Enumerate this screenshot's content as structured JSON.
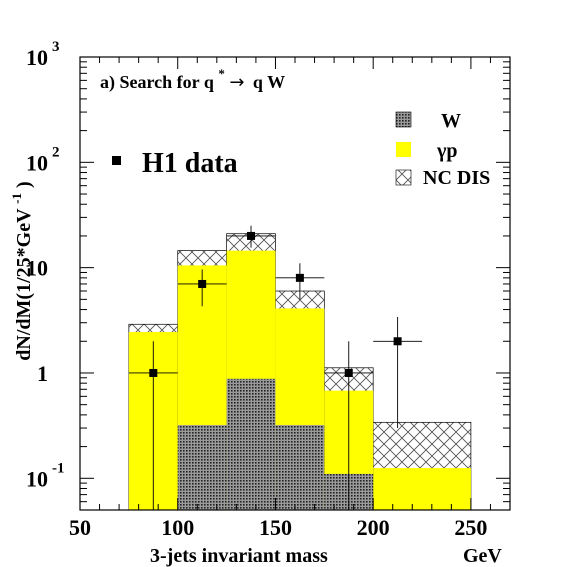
{
  "chart_data": {
    "type": "bar",
    "title": "a)  Search for q* → q W",
    "title_parts": {
      "prefix": "a)  Search for q",
      "superscript": "*",
      "arrow": "→",
      "suffix": "q W"
    },
    "xlabel": "3-jets invariant mass",
    "xunit": "GeV",
    "ylabel": "dN/dM(1/25*GeV⁻¹)",
    "ylabel_parts": {
      "main": "dN/dM(1/25*GeV",
      "superscript": "-1",
      "close": ")"
    },
    "xlim": [
      50,
      270
    ],
    "ylim": [
      0.05,
      1000
    ],
    "yscale": "log",
    "x_ticks": [
      "50",
      "100",
      "150",
      "200",
      "250"
    ],
    "x_tick_values": [
      50,
      100,
      150,
      200,
      250
    ],
    "y_ticks": [
      {
        "value": 1000,
        "base": "10",
        "exp": "3"
      },
      {
        "value": 100,
        "base": "10",
        "exp": "2"
      },
      {
        "value": 10,
        "base": "10",
        "exp": ""
      },
      {
        "value": 1,
        "base": "1",
        "exp": ""
      },
      {
        "value": 0.1,
        "base": "10",
        "exp": "-1"
      }
    ],
    "bin_edges": [
      75,
      100,
      125,
      150,
      175,
      200,
      250
    ],
    "stacked_series": [
      {
        "name": "W",
        "color": "#555555",
        "pattern": "dense-dots",
        "values": [
          0,
          0.32,
          0.88,
          0.32,
          0.11,
          0
        ]
      },
      {
        "name": "γp",
        "color": "#ffff00",
        "pattern": "solid",
        "values": [
          2.45,
          10.5,
          14.5,
          4.1,
          0.68,
          0.125
        ]
      },
      {
        "name": "NC DIS",
        "color": "#ffffff",
        "pattern": "crosshatch",
        "values": [
          2.9,
          14.5,
          21,
          6.0,
          1.12,
          0.34
        ]
      }
    ],
    "data_series": {
      "name": "H1 data",
      "points": [
        {
          "x": 87.5,
          "y": 1,
          "xerr": 12.5,
          "ylo": 0.05,
          "yhi": 2.0
        },
        {
          "x": 112.5,
          "y": 7,
          "xerr": 12.5,
          "ylo": 4.3,
          "yhi": 9.6
        },
        {
          "x": 137.5,
          "y": 20,
          "xerr": 12.5,
          "ylo": 15.5,
          "yhi": 25
        },
        {
          "x": 162.5,
          "y": 8,
          "xerr": 12.5,
          "ylo": 5.0,
          "yhi": 11
        },
        {
          "x": 187.5,
          "y": 1,
          "xerr": 12.5,
          "ylo": 0.05,
          "yhi": 2.0
        },
        {
          "x": 212.5,
          "y": 2,
          "xerr": 12.5,
          "ylo": 0.3,
          "yhi": 3.4
        }
      ]
    },
    "legend": {
      "placement": "top-right",
      "items": [
        {
          "label": "W",
          "pattern": "dense-dots"
        },
        {
          "label": "γp",
          "pattern": "solid-yellow"
        },
        {
          "label": "NC DIS",
          "pattern": "crosshatch"
        }
      ],
      "data_label": "H1 data"
    },
    "grid": false
  }
}
